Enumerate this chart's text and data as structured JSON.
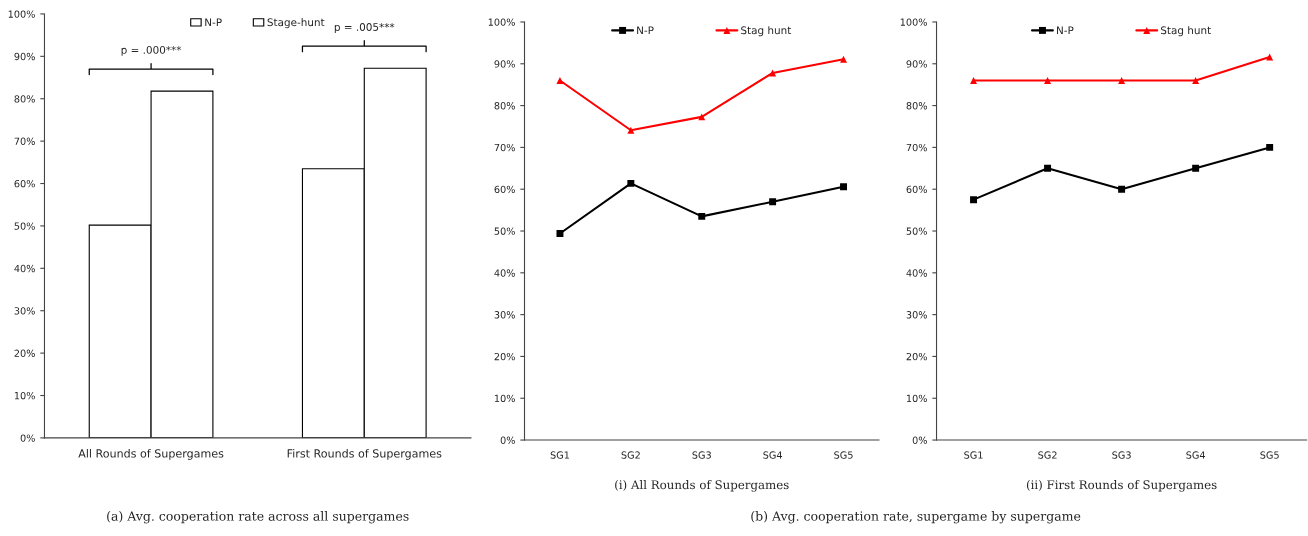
{
  "chart_data": [
    {
      "type": "bar",
      "categories": [
        "All Rounds of Supergames",
        "First Rounds of Supergames"
      ],
      "series": [
        {
          "name": "N-P",
          "color": "#ffffff",
          "values": [
            50.2,
            63.5
          ]
        },
        {
          "name": "Stage-hunt",
          "color": "#ffffff",
          "values": [
            81.8,
            87.2
          ]
        }
      ],
      "ylim": [
        0,
        100
      ],
      "yticks": [
        {
          "value": 0,
          "label": "0%"
        },
        {
          "value": 10,
          "label": "10%"
        },
        {
          "value": 20,
          "label": "20%"
        },
        {
          "value": 30,
          "label": "30%"
        },
        {
          "value": 40,
          "label": "40%"
        },
        {
          "value": 50,
          "label": "50%"
        },
        {
          "value": 60,
          "label": "60%"
        },
        {
          "value": 70,
          "label": "70%"
        },
        {
          "value": 80,
          "label": "80%"
        },
        {
          "value": 90,
          "label": "90%"
        },
        {
          "value": 100,
          "label": "100%"
        }
      ],
      "annotations": [
        "p = .000***",
        "p = .005***",
        "(a) Avg. cooperation rate across all supergames"
      ],
      "grid": false,
      "legend": "top"
    },
    {
      "type": "line",
      "categories": [
        "SG1",
        "SG2",
        "SG3",
        "SG4",
        "SG5"
      ],
      "xlabel": "(i) All Rounds of Supergames",
      "series": [
        {
          "name": "N-P",
          "color": "#000000",
          "marker": "square",
          "values": [
            49.4,
            61.4,
            53.5,
            57.0,
            60.6
          ]
        },
        {
          "name": "Stag hunt",
          "color": "#ff0000",
          "marker": "triangle",
          "values": [
            86.0,
            74.1,
            77.3,
            87.8,
            91.1
          ]
        }
      ],
      "ylim": [
        0,
        100
      ],
      "yticks": [
        {
          "value": 0,
          "label": "0%"
        },
        {
          "value": 10,
          "label": "10%"
        },
        {
          "value": 20,
          "label": "20%"
        },
        {
          "value": 30,
          "label": "30%"
        },
        {
          "value": 40,
          "label": "40%"
        },
        {
          "value": 50,
          "label": "50%"
        },
        {
          "value": 60,
          "label": "60%"
        },
        {
          "value": 70,
          "label": "70%"
        },
        {
          "value": 80,
          "label": "80%"
        },
        {
          "value": 90,
          "label": "90%"
        },
        {
          "value": 100,
          "label": "100%"
        }
      ],
      "annotations": [
        "(b) Avg. cooperation rate, supergame by supergame"
      ],
      "grid": false,
      "legend": "top",
      "line_style": "solid"
    },
    {
      "type": "line",
      "categories": [
        "SG1",
        "SG2",
        "SG3",
        "SG4",
        "SG5"
      ],
      "xlabel": "(ii) First Rounds of Supergames",
      "series": [
        {
          "name": "N-P",
          "color": "#000000",
          "marker": "square",
          "values": [
            57.5,
            65.0,
            60.0,
            65.0,
            70.0
          ]
        },
        {
          "name": "Stag hunt",
          "color": "#ff0000",
          "marker": "triangle",
          "values": [
            86.0,
            86.0,
            86.0,
            86.0,
            91.6
          ]
        }
      ],
      "ylim": [
        0,
        100
      ],
      "yticks": [
        {
          "value": 0,
          "label": "0%"
        },
        {
          "value": 10,
          "label": "10%"
        },
        {
          "value": 20,
          "label": "20%"
        },
        {
          "value": 30,
          "label": "30%"
        },
        {
          "value": 40,
          "label": "40%"
        },
        {
          "value": 50,
          "label": "50%"
        },
        {
          "value": 60,
          "label": "60%"
        },
        {
          "value": 70,
          "label": "70%"
        },
        {
          "value": 80,
          "label": "80%"
        },
        {
          "value": 90,
          "label": "90%"
        },
        {
          "value": 100,
          "label": "100%"
        }
      ],
      "grid": false,
      "legend": "top",
      "line_style": "solid"
    }
  ]
}
